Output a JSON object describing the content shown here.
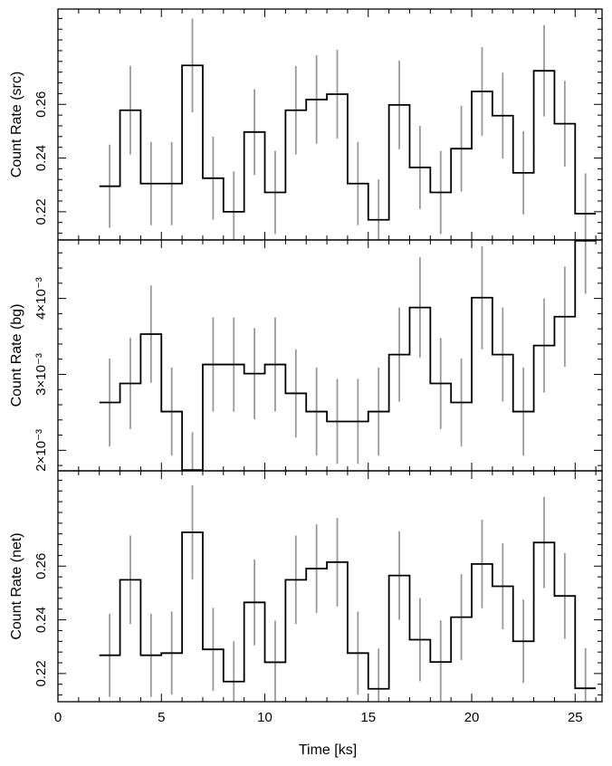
{
  "chart_data": {
    "type": "line",
    "x_axis": {
      "label": "Time [ks]",
      "range": [
        0,
        26.3
      ],
      "major_ticks": [
        0,
        5,
        10,
        15,
        20,
        25
      ],
      "tick_labels": [
        "0",
        "5",
        "10",
        "15",
        "20",
        "25"
      ]
    },
    "panels": [
      {
        "id": "src",
        "ylabel": "Count Rate (src)",
        "ylim": [
          0.2095,
          0.2955
        ],
        "y_ticks": [
          0.22,
          0.24,
          0.26
        ],
        "y_tick_labels": [
          "0.22",
          "0.24",
          "0.26"
        ],
        "series": {
          "x": [
            2.5,
            3.5,
            4.5,
            5.5,
            6.5,
            7.5,
            8.5,
            9.5,
            10.5,
            11.5,
            12.5,
            13.5,
            14.5,
            15.5,
            16.5,
            17.5,
            18.5,
            19.5,
            20.5,
            21.5,
            22.5,
            23.5,
            24.5,
            25.5
          ],
          "y": [
            0.2295,
            0.2578,
            0.2305,
            0.2305,
            0.2745,
            0.2325,
            0.22,
            0.2497,
            0.2272,
            0.2578,
            0.2618,
            0.2638,
            0.2305,
            0.217,
            0.2598,
            0.2365,
            0.2272,
            0.2435,
            0.2648,
            0.2558,
            0.2345,
            0.2725,
            0.2528,
            0.2193
          ],
          "yerr": [
            0.0155,
            0.0165,
            0.0155,
            0.0155,
            0.0175,
            0.0155,
            0.015,
            0.016,
            0.0155,
            0.0165,
            0.0165,
            0.0165,
            0.0155,
            0.015,
            0.0165,
            0.0155,
            0.0155,
            0.016,
            0.0165,
            0.016,
            0.0155,
            0.017,
            0.016,
            0.015
          ]
        }
      },
      {
        "id": "bg",
        "ylabel": "Count Rate (bg)",
        "ylim": [
          0.00173,
          0.00477
        ],
        "y_ticks": [
          0.002,
          0.003,
          0.004
        ],
        "y_tick_labels": [
          "2×10⁻³",
          "3×10⁻³",
          "4×10⁻³"
        ],
        "series": {
          "x": [
            2.5,
            3.5,
            4.5,
            5.5,
            6.5,
            7.5,
            8.5,
            9.5,
            10.5,
            11.5,
            12.5,
            13.5,
            14.5,
            15.5,
            16.5,
            17.5,
            18.5,
            19.5,
            20.5,
            21.5,
            22.5,
            23.5,
            24.5,
            25.5
          ],
          "y": [
            0.00263,
            0.00288,
            0.00353,
            0.00251,
            0.00174,
            0.00313,
            0.00313,
            0.00301,
            0.00313,
            0.00275,
            0.00251,
            0.00238,
            0.00238,
            0.00251,
            0.00326,
            0.00388,
            0.00288,
            0.00263,
            0.00401,
            0.00326,
            0.00251,
            0.00338,
            0.00376,
            0.00476
          ],
          "yerr": [
            0.00058,
            0.0006,
            0.00064,
            0.00058,
            0.0005,
            0.00062,
            0.00062,
            0.0006,
            0.00062,
            0.00058,
            0.00058,
            0.00056,
            0.00056,
            0.00058,
            0.00062,
            0.00066,
            0.0006,
            0.00058,
            0.00068,
            0.00062,
            0.00058,
            0.00062,
            0.00066,
            0.0007
          ]
        }
      },
      {
        "id": "net",
        "ylabel": "Count Rate (net)",
        "ylim": [
          0.2095,
          0.2955
        ],
        "y_ticks": [
          0.22,
          0.24,
          0.26
        ],
        "y_tick_labels": [
          "0.22",
          "0.24",
          "0.26"
        ],
        "series": {
          "x": [
            2.5,
            3.5,
            4.5,
            5.5,
            6.5,
            7.5,
            8.5,
            9.5,
            10.5,
            11.5,
            12.5,
            13.5,
            14.5,
            15.5,
            16.5,
            17.5,
            18.5,
            19.5,
            20.5,
            21.5,
            22.5,
            23.5,
            24.5,
            25.5
          ],
          "y": [
            0.2268,
            0.2549,
            0.2268,
            0.2276,
            0.2726,
            0.229,
            0.217,
            0.2465,
            0.2242,
            0.2549,
            0.2591,
            0.2615,
            0.2276,
            0.2143,
            0.2565,
            0.2326,
            0.2243,
            0.241,
            0.2608,
            0.2525,
            0.232,
            0.2688,
            0.2489,
            0.2145
          ],
          "yerr": [
            0.0155,
            0.0165,
            0.0155,
            0.0155,
            0.0175,
            0.0155,
            0.015,
            0.016,
            0.0155,
            0.0165,
            0.0165,
            0.0165,
            0.0155,
            0.015,
            0.0165,
            0.0155,
            0.0155,
            0.016,
            0.0165,
            0.016,
            0.0155,
            0.017,
            0.016,
            0.015
          ]
        }
      }
    ],
    "grid": false,
    "bin_width": 1.0,
    "colors": {
      "steps": "#000000",
      "error_bars": "#9a9a9a"
    }
  }
}
